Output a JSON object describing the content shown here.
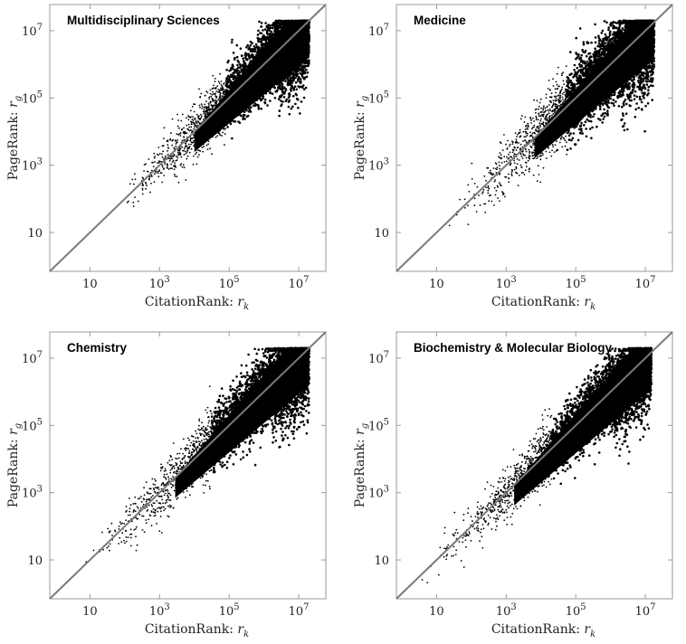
{
  "chart_data": [
    {
      "type": "scatter",
      "title": "Multidisciplinary Sciences",
      "xlabel": "CitationRank: r_k",
      "ylabel": "PageRank: r_g",
      "x_scale": "log",
      "y_scale": "log",
      "xlim": [
        0.7,
        60000000
      ],
      "ylim": [
        0.7,
        60000000
      ],
      "x_ticks": [
        {
          "value": 10,
          "label": "10"
        },
        {
          "value": 1000,
          "label": "10^3"
        },
        {
          "value": 100000,
          "label": "10^5"
        },
        {
          "value": 10000000,
          "label": "10^7"
        }
      ],
      "y_ticks": [
        {
          "value": 10,
          "label": "10"
        },
        {
          "value": 1000,
          "label": "10^3"
        },
        {
          "value": 100000,
          "label": "10^5"
        },
        {
          "value": 10000000,
          "label": "10^7"
        }
      ],
      "reference_line": "y = x",
      "cloud": {
        "x_min": 20,
        "x_max": 20000000,
        "y_at_xmax": [
          300000,
          20000000
        ],
        "spread_dex": 0.5
      }
    },
    {
      "type": "scatter",
      "title": "Medicine",
      "xlabel": "CitationRank: r_k",
      "ylabel": "PageRank: r_g",
      "x_scale": "log",
      "y_scale": "log",
      "xlim": [
        0.7,
        60000000
      ],
      "ylim": [
        0.7,
        60000000
      ],
      "x_ticks": [
        {
          "value": 10,
          "label": "10"
        },
        {
          "value": 1000,
          "label": "10^3"
        },
        {
          "value": 100000,
          "label": "10^5"
        },
        {
          "value": 10000000,
          "label": "10^7"
        }
      ],
      "y_ticks": [
        {
          "value": 10,
          "label": "10"
        },
        {
          "value": 1000,
          "label": "10^3"
        },
        {
          "value": 100000,
          "label": "10^5"
        },
        {
          "value": 10000000,
          "label": "10^7"
        }
      ],
      "reference_line": "y = x",
      "cloud": {
        "x_min": 10,
        "x_max": 18000000,
        "y_at_xmax": [
          200000,
          20000000
        ],
        "spread_dex": 0.6
      }
    },
    {
      "type": "scatter",
      "title": "Chemistry",
      "xlabel": "CitationRank: r_k",
      "ylabel": "PageRank: r_g",
      "x_scale": "log",
      "y_scale": "log",
      "xlim": [
        0.7,
        60000000
      ],
      "ylim": [
        0.7,
        60000000
      ],
      "x_ticks": [
        {
          "value": 10,
          "label": "10"
        },
        {
          "value": 1000,
          "label": "10^3"
        },
        {
          "value": 100000,
          "label": "10^5"
        },
        {
          "value": 10000000,
          "label": "10^7"
        }
      ],
      "y_ticks": [
        {
          "value": 10,
          "label": "10"
        },
        {
          "value": 1000,
          "label": "10^3"
        },
        {
          "value": 100000,
          "label": "10^5"
        },
        {
          "value": 10000000,
          "label": "10^7"
        }
      ],
      "reference_line": "y = x",
      "cloud": {
        "x_min": 2,
        "x_max": 20000000,
        "y_at_xmax": [
          300000,
          20000000
        ],
        "spread_dex": 0.55
      }
    },
    {
      "type": "scatter",
      "title": "Biochemistry & Molecular Biology",
      "xlabel": "CitationRank: r_k",
      "ylabel": "PageRank: r_g",
      "x_scale": "log",
      "y_scale": "log",
      "xlim": [
        0.7,
        60000000
      ],
      "ylim": [
        0.7,
        60000000
      ],
      "x_ticks": [
        {
          "value": 10,
          "label": "10"
        },
        {
          "value": 1000,
          "label": "10^3"
        },
        {
          "value": 100000,
          "label": "10^5"
        },
        {
          "value": 10000000,
          "label": "10^7"
        }
      ],
      "y_ticks": [
        {
          "value": 10,
          "label": "10"
        },
        {
          "value": 1000,
          "label": "10^3"
        },
        {
          "value": 100000,
          "label": "10^5"
        },
        {
          "value": 10000000,
          "label": "10^7"
        }
      ],
      "reference_line": "y = x",
      "cloud": {
        "x_min": 1,
        "x_max": 15000000,
        "y_at_xmax": [
          300000,
          20000000
        ],
        "spread_dex": 0.5
      }
    }
  ]
}
